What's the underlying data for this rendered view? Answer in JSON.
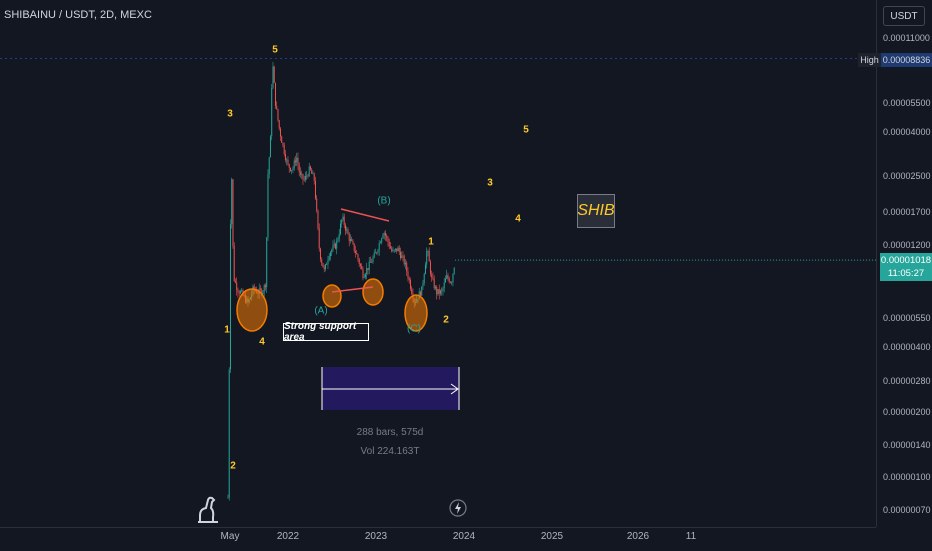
{
  "header": {
    "symbol_title": "SHIBAINU / USDT, 2D, MEXC",
    "currency_button": "USDT"
  },
  "price_scale": {
    "ticks": [
      {
        "label": "0.00011000",
        "value": 0.00011
      },
      {
        "label": "0.00005500",
        "value": 5.5e-05
      },
      {
        "label": "0.00004000",
        "value": 4e-05
      },
      {
        "label": "0.00002500",
        "value": 2.5e-05
      },
      {
        "label": "0.00001700",
        "value": 1.7e-05
      },
      {
        "label": "0.00001200",
        "value": 1.2e-05
      },
      {
        "label": "0.00000550",
        "value": 5.5e-06
      },
      {
        "label": "0.00000400",
        "value": 4e-06
      },
      {
        "label": "0.00000280",
        "value": 2.8e-06
      },
      {
        "label": "0.00000200",
        "value": 2e-06
      },
      {
        "label": "0.00000140",
        "value": 1.4e-06
      },
      {
        "label": "0.00000100",
        "value": 1e-06
      },
      {
        "label": "0.00000070",
        "value": 7e-07
      }
    ],
    "high_tag": "High",
    "high_value": "0.00008836",
    "last_price": "0.00001018",
    "countdown": "11:05:27"
  },
  "time_scale": {
    "labels": [
      "May",
      "2022",
      "2023",
      "2024",
      "2025",
      "2026",
      "11"
    ]
  },
  "annotations": {
    "support_text": "Strong support area",
    "shib_text": "SHIB",
    "measure_bars": "288 bars, 575d",
    "measure_vol": "Vol 224.163T",
    "wave_labels": [
      "1",
      "2",
      "3",
      "4",
      "5",
      "(A)",
      "(B)",
      "(C)",
      "1",
      "2",
      "3",
      "4",
      "5"
    ]
  },
  "colors": {
    "background": "#131722",
    "up": "#26a69a",
    "down": "#ef5350",
    "wave_label": "#ffca28",
    "circle": "#f57c00",
    "measure_fill": "#311b92"
  },
  "icons": [
    "tradingview-logo-icon",
    "lightning-bolt-icon"
  ],
  "chart_data": {
    "type": "line",
    "title": "SHIBAINU / USDT, 2D, MEXC",
    "xlabel": "",
    "ylabel": "",
    "y_scale": "log",
    "x_ticks": [
      "May",
      "2022",
      "2023",
      "2024",
      "2025",
      "2026",
      "11"
    ],
    "series": [
      {
        "x": [
          "2021-04-27",
          "2021-05-03",
          "2021-05-10",
          "2021-05-20",
          "2021-06-05",
          "2021-07-01",
          "2021-07-20",
          "2021-08-10",
          "2021-09-01",
          "2021-09-20",
          "2021-10-01",
          "2021-10-10",
          "2021-10-20",
          "2021-10-28",
          "2021-11-10",
          "2021-11-25",
          "2021-12-10",
          "2021-12-31",
          "2022-01-20",
          "2022-02-05",
          "2022-02-20",
          "2022-03-10",
          "2022-04-01",
          "2022-04-20",
          "2022-05-12",
          "2022-06-01",
          "2022-06-20",
          "2022-07-20",
          "2022-08-14",
          "2022-09-10",
          "2022-10-10",
          "2022-11-09",
          "2022-12-01",
          "2023-01-01",
          "2023-02-01",
          "2023-03-10",
          "2023-04-01",
          "2023-05-01",
          "2023-06-10",
          "2023-07-10",
          "2023-08-01",
          "2023-08-20",
          "2023-09-10",
          "2023-10-01",
          "2023-10-20",
          "2023-11-10",
          "2023-11-25"
        ],
        "y": [
          8e-07,
          4e-06,
          3.5e-05,
          8.5e-06,
          7.5e-06,
          6.9e-06,
          6.4e-06,
          7.5e-06,
          7.2e-06,
          7.4e-06,
          8.01e-06,
          2.6e-05,
          3.6e-05,
          8.8e-05,
          5.5e-05,
          4.2e-05,
          3.5e-05,
          2.8e-05,
          2.7e-05,
          3.1e-05,
          2.5e-05,
          2.4e-05,
          2.7e-05,
          2.4e-05,
          1.1e-05,
          9e-06,
          1.1e-05,
          1.2e-05,
          1.6e-05,
          1.3e-05,
          1.1e-05,
          8.7e-06,
          9.5e-06,
          1.1e-05,
          1.4e-05,
          1.1e-05,
          1.15e-05,
          9.8e-06,
          6.5e-06,
          7.4e-06,
          1.15e-05,
          8.3e-06,
          7.2e-06,
          7.2e-06,
          8.5e-06,
          8.1e-06,
          1.018e-05
        ]
      }
    ],
    "ylim": [
      7e-07,
      0.00011
    ],
    "grid": false,
    "legend": "none"
  }
}
